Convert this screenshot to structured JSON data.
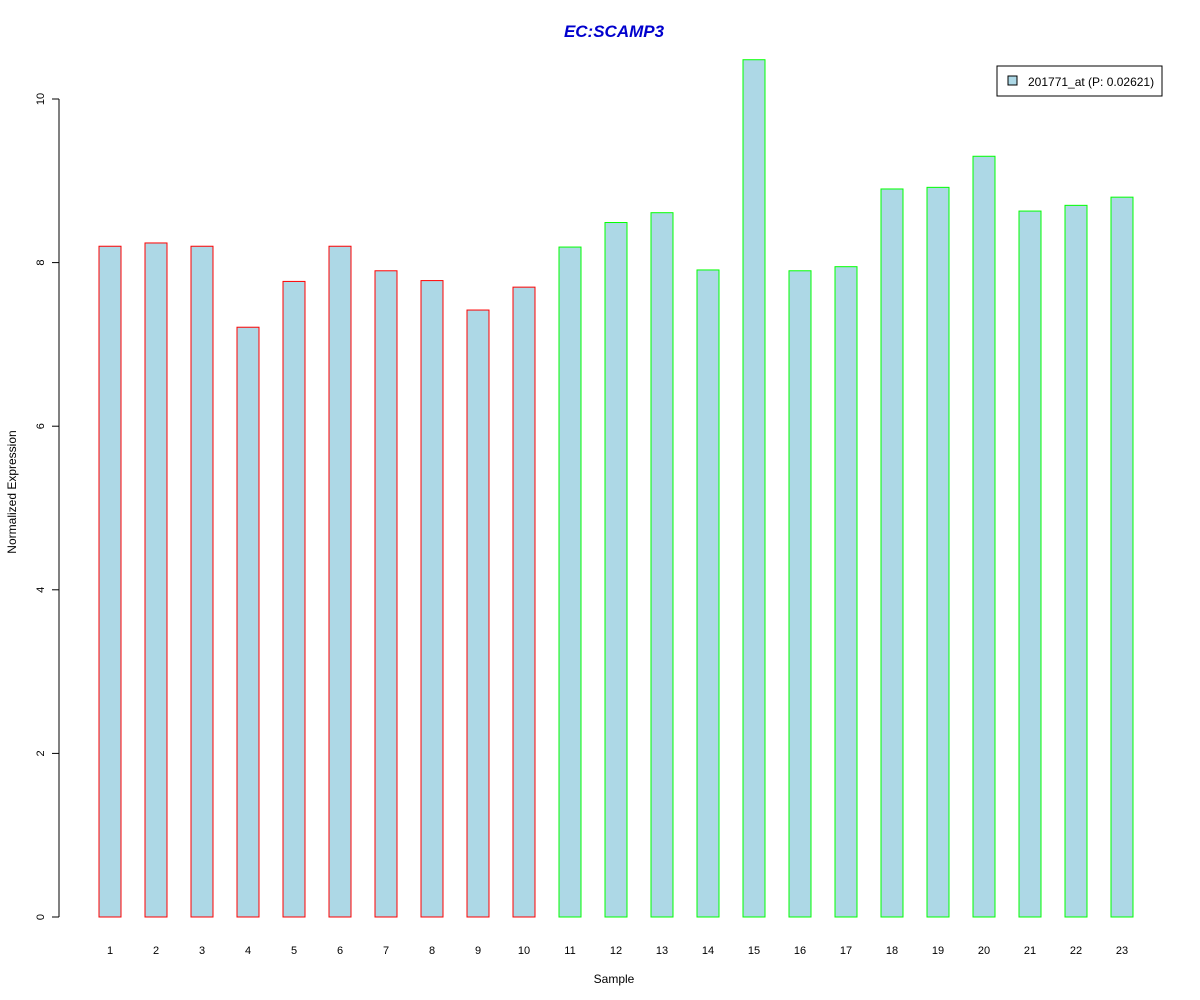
{
  "chart_data": {
    "type": "bar",
    "title": "EC:SCAMP3",
    "xlabel": "Sample",
    "ylabel": "Normalized Expression",
    "categories": [
      "1",
      "2",
      "3",
      "4",
      "5",
      "6",
      "7",
      "8",
      "9",
      "10",
      "11",
      "12",
      "13",
      "14",
      "15",
      "16",
      "17",
      "18",
      "19",
      "20",
      "21",
      "22",
      "23"
    ],
    "series": [
      {
        "name": "201771_at (P: 0.02621)",
        "values": [
          8.2,
          8.24,
          8.2,
          7.21,
          7.77,
          8.2,
          7.9,
          7.78,
          7.42,
          7.7,
          8.19,
          8.49,
          8.61,
          7.91,
          10.48,
          7.9,
          7.95,
          8.9,
          8.92,
          9.3,
          8.63,
          8.7,
          8.8
        ]
      }
    ],
    "groups": [
      {
        "samples": [
          "1",
          "2",
          "3",
          "4",
          "5",
          "6",
          "7",
          "8",
          "9",
          "10"
        ],
        "border_color": "#ff0000"
      },
      {
        "samples": [
          "11",
          "12",
          "13",
          "14",
          "15",
          "16",
          "17",
          "18",
          "19",
          "20",
          "21",
          "22",
          "23"
        ],
        "border_color": "#00ff00"
      }
    ],
    "yticks": [
      0,
      2,
      4,
      6,
      8,
      10
    ],
    "ylim": [
      0,
      10.48
    ],
    "grid": false,
    "legend_position": "top-right",
    "colors": {
      "bar_fill": "#add8e6",
      "title": "#0000cd",
      "axis": "#000000"
    }
  }
}
